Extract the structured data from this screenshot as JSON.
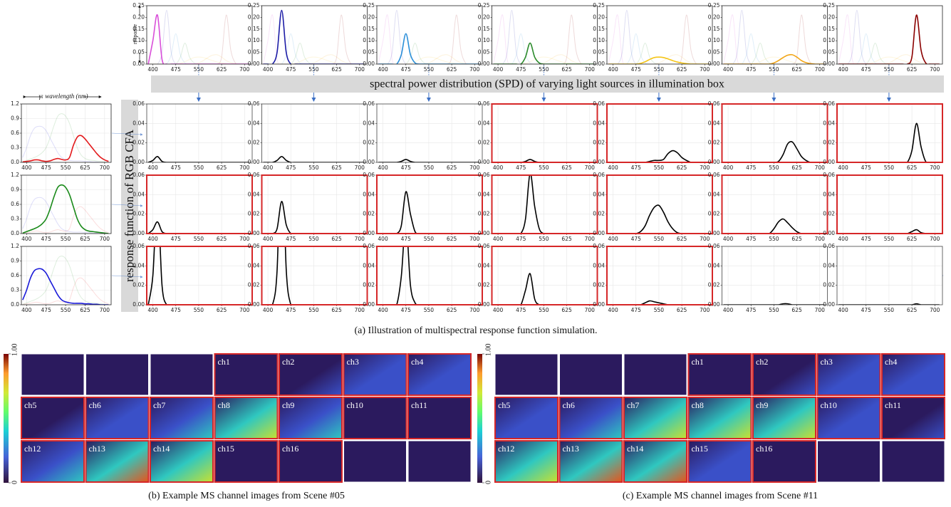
{
  "spd": {
    "ylabel": "response",
    "x": [
      385,
      400,
      415,
      430,
      445,
      460,
      475,
      490,
      505,
      520,
      535,
      550,
      565,
      580,
      595,
      610,
      625,
      640,
      655,
      670,
      685,
      700,
      715
    ],
    "xlim": [
      380,
      725
    ],
    "ylim": [
      0,
      0.25
    ],
    "xticks": [
      400,
      475,
      550,
      625,
      700
    ],
    "yticks": [
      {
        "value": 0,
        "label": "0.00"
      },
      0.05,
      {
        "value": 0.1,
        "label": "0.10"
      },
      0.15,
      {
        "value": 0.2,
        "label": "0.20"
      },
      0.25
    ],
    "series": [
      {
        "color": "#d94fd9",
        "values": [
          0,
          0.1,
          0.21,
          0.02,
          0,
          0,
          0,
          0,
          0,
          0,
          0,
          0,
          0,
          0,
          0,
          0,
          0,
          0,
          0,
          0,
          0,
          0,
          0
        ]
      },
      {
        "color": "#1c1ca6",
        "values": [
          0,
          0,
          0,
          0.05,
          0.23,
          0.05,
          0,
          0,
          0,
          0,
          0,
          0,
          0,
          0,
          0,
          0,
          0,
          0,
          0,
          0,
          0,
          0,
          0
        ]
      },
      {
        "color": "#2b8fd9",
        "values": [
          0,
          0,
          0,
          0,
          0,
          0.04,
          0.13,
          0.04,
          0.005,
          0,
          0,
          0,
          0,
          0,
          0,
          0,
          0,
          0,
          0,
          0,
          0,
          0,
          0
        ]
      },
      {
        "color": "#2a8a2a",
        "values": [
          0,
          0,
          0,
          0,
          0,
          0,
          0,
          0.03,
          0.09,
          0.03,
          0.005,
          0,
          0,
          0,
          0,
          0,
          0,
          0,
          0,
          0,
          0,
          0,
          0
        ]
      },
      {
        "color": "#f5c518",
        "values": [
          0,
          0,
          0,
          0,
          0,
          0,
          0,
          0.003,
          0.01,
          0.02,
          0.028,
          0.03,
          0.028,
          0.022,
          0.015,
          0.009,
          0.005,
          0.002,
          0,
          0,
          0,
          0,
          0
        ]
      },
      {
        "color": "#f2a516",
        "values": [
          0,
          0,
          0,
          0,
          0,
          0,
          0,
          0,
          0,
          0,
          0,
          0.005,
          0.015,
          0.028,
          0.038,
          0.04,
          0.03,
          0.015,
          0.006,
          0.002,
          0,
          0,
          0
        ]
      },
      {
        "color": "#8b0000",
        "values": [
          0,
          0,
          0,
          0,
          0,
          0,
          0,
          0,
          0,
          0,
          0,
          0,
          0,
          0,
          0,
          0,
          0.03,
          0.21,
          0.06,
          0.005,
          0,
          0,
          0
        ]
      }
    ]
  },
  "cfa": {
    "title": "γ: wavelength (nm)",
    "x": [
      385,
      400,
      415,
      430,
      445,
      460,
      475,
      490,
      505,
      520,
      535,
      550,
      565,
      580,
      595,
      610,
      625,
      640,
      655,
      670,
      685,
      700,
      715
    ],
    "xlim": [
      380,
      725
    ],
    "ylim": [
      0,
      1.2
    ],
    "xticks": [
      400,
      475,
      550,
      625,
      700
    ],
    "yticks": [
      {
        "value": 0,
        "label": "0.0"
      },
      0.3,
      0.6,
      0.9,
      1.2
    ],
    "series": [
      {
        "color": "#e31a1c",
        "values": [
          0.01,
          0.02,
          0.03,
          0.05,
          0.05,
          0.03,
          0.02,
          0.03,
          0.06,
          0.08,
          0.06,
          0.05,
          0.1,
          0.35,
          0.52,
          0.55,
          0.48,
          0.38,
          0.28,
          0.18,
          0.1,
          0.05,
          0.02
        ]
      },
      {
        "color": "#1a8a1a",
        "values": [
          0.01,
          0.04,
          0.07,
          0.1,
          0.14,
          0.2,
          0.3,
          0.5,
          0.75,
          0.95,
          1.0,
          0.95,
          0.8,
          0.55,
          0.3,
          0.15,
          0.08,
          0.05,
          0.04,
          0.03,
          0.02,
          0.01,
          0
        ]
      },
      {
        "color": "#1a1ad9",
        "values": [
          0.1,
          0.3,
          0.55,
          0.7,
          0.74,
          0.73,
          0.65,
          0.5,
          0.35,
          0.2,
          0.1,
          0.06,
          0.04,
          0.03,
          0.03,
          0.03,
          0.02,
          0.02,
          0.01,
          0.01,
          0,
          0,
          0
        ]
      }
    ]
  },
  "response": {
    "x": [
      385,
      400,
      415,
      430,
      445,
      460,
      475,
      490,
      505,
      520,
      535,
      550,
      565,
      580,
      595,
      610,
      625,
      640,
      655,
      670,
      685,
      700,
      715
    ],
    "xlim": [
      380,
      725
    ],
    "ylim": [
      0,
      0.06
    ],
    "xticks": [
      400,
      475,
      550,
      625,
      700
    ],
    "yticks": [
      {
        "value": 0,
        "label": "0.00"
      },
      0.02,
      0.04,
      0.06
    ],
    "highlight_color": "#d62728",
    "highlighted": [
      [
        false,
        false,
        false,
        true,
        true,
        true,
        true
      ],
      [
        true,
        true,
        true,
        true,
        true,
        true,
        true
      ],
      [
        true,
        true,
        true,
        true,
        true,
        false,
        false
      ]
    ],
    "values": [
      [
        [
          0,
          0.002,
          0.006,
          0.001,
          0,
          0,
          0,
          0,
          0,
          0,
          0,
          0,
          0,
          0,
          0,
          0,
          0,
          0,
          0,
          0,
          0,
          0,
          0
        ],
        [
          0,
          0,
          0,
          0.002,
          0.006,
          0.002,
          0,
          0,
          0,
          0,
          0,
          0,
          0,
          0,
          0,
          0,
          0,
          0,
          0,
          0,
          0,
          0,
          0
        ],
        [
          0,
          0,
          0,
          0,
          0,
          0.001,
          0.003,
          0.001,
          0,
          0,
          0,
          0,
          0,
          0,
          0,
          0,
          0,
          0,
          0,
          0,
          0,
          0,
          0
        ],
        [
          0,
          0,
          0,
          0,
          0,
          0,
          0,
          0.001,
          0.003,
          0.001,
          0,
          0,
          0,
          0,
          0,
          0,
          0,
          0,
          0,
          0,
          0,
          0,
          0
        ],
        [
          0,
          0,
          0,
          0,
          0,
          0,
          0,
          0,
          0,
          0.001,
          0.002,
          0.002,
          0.003,
          0.009,
          0.012,
          0.01,
          0.005,
          0.002,
          0,
          0,
          0,
          0,
          0
        ],
        [
          0,
          0,
          0,
          0,
          0,
          0,
          0,
          0,
          0,
          0,
          0,
          0,
          0.001,
          0.008,
          0.019,
          0.021,
          0.014,
          0.006,
          0.002,
          0,
          0,
          0,
          0
        ],
        [
          0,
          0,
          0,
          0,
          0,
          0,
          0,
          0,
          0,
          0,
          0,
          0,
          0,
          0,
          0,
          0,
          0.012,
          0.04,
          0.016,
          0.001,
          0,
          0,
          0
        ]
      ],
      [
        [
          0,
          0.004,
          0.012,
          0.002,
          0,
          0,
          0,
          0,
          0,
          0,
          0,
          0,
          0,
          0,
          0,
          0,
          0,
          0,
          0,
          0,
          0,
          0,
          0
        ],
        [
          0,
          0,
          0,
          0.005,
          0.033,
          0.009,
          0,
          0,
          0,
          0,
          0,
          0,
          0,
          0,
          0,
          0,
          0,
          0,
          0,
          0,
          0,
          0,
          0
        ],
        [
          0,
          0,
          0,
          0,
          0,
          0.008,
          0.043,
          0.02,
          0.002,
          0,
          0,
          0,
          0,
          0,
          0,
          0,
          0,
          0,
          0,
          0,
          0,
          0,
          0
        ],
        [
          0,
          0,
          0,
          0,
          0,
          0,
          0,
          0.015,
          0.062,
          0.028,
          0.005,
          0,
          0,
          0,
          0,
          0,
          0,
          0,
          0,
          0,
          0,
          0,
          0
        ],
        [
          0,
          0,
          0,
          0,
          0,
          0,
          0,
          0.002,
          0.008,
          0.019,
          0.027,
          0.029,
          0.022,
          0.012,
          0.005,
          0.001,
          0,
          0,
          0,
          0,
          0,
          0,
          0
        ],
        [
          0,
          0,
          0,
          0,
          0,
          0,
          0,
          0,
          0,
          0,
          0,
          0.005,
          0.012,
          0.015,
          0.011,
          0.006,
          0.002,
          0,
          0,
          0,
          0,
          0,
          0
        ],
        [
          0,
          0,
          0,
          0,
          0,
          0,
          0,
          0,
          0,
          0,
          0,
          0,
          0,
          0,
          0,
          0,
          0.002,
          0.004,
          0.001,
          0,
          0,
          0,
          0
        ]
      ],
      [
        [
          0,
          0.03,
          0.11,
          0.02,
          0,
          0,
          0,
          0,
          0,
          0,
          0,
          0,
          0,
          0,
          0,
          0,
          0,
          0,
          0,
          0,
          0,
          0,
          0
        ],
        [
          0,
          0,
          0,
          0.035,
          0.17,
          0.036,
          0,
          0,
          0,
          0,
          0,
          0,
          0,
          0,
          0,
          0,
          0,
          0,
          0,
          0,
          0,
          0,
          0
        ],
        [
          0,
          0,
          0,
          0,
          0,
          0.029,
          0.085,
          0.02,
          0.002,
          0,
          0,
          0,
          0,
          0,
          0,
          0,
          0,
          0,
          0,
          0,
          0,
          0,
          0
        ],
        [
          0,
          0,
          0,
          0,
          0,
          0,
          0,
          0.015,
          0.032,
          0.006,
          0,
          0,
          0,
          0,
          0,
          0,
          0,
          0,
          0,
          0,
          0,
          0,
          0
        ],
        [
          0,
          0,
          0,
          0,
          0,
          0,
          0,
          0,
          0.002,
          0.004,
          0.003,
          0.002,
          0.001,
          0,
          0,
          0,
          0,
          0,
          0,
          0,
          0,
          0,
          0
        ],
        [
          0,
          0,
          0,
          0,
          0,
          0,
          0,
          0,
          0,
          0,
          0,
          0,
          0,
          0.001,
          0.001,
          0,
          0,
          0,
          0,
          0,
          0,
          0,
          0
        ],
        [
          0,
          0,
          0,
          0,
          0,
          0,
          0,
          0,
          0,
          0,
          0,
          0,
          0,
          0,
          0,
          0,
          0,
          0.001,
          0,
          0,
          0,
          0,
          0
        ]
      ]
    ]
  },
  "banners": {
    "spd": "spectral power distribution (SPD) of varying light sources in illumination box",
    "cfa": "response function of RGB CFA"
  },
  "captions": {
    "a": "(a) Illustration of multispectral response function simulation."
  },
  "scenes": [
    {
      "caption": "(b) Example MS channel images from Scene #05",
      "colorbar_ticks": [
        0,
        {
          "value": 1,
          "label": "1.00"
        }
      ],
      "tiles": [
        null,
        null,
        null,
        "ch1",
        "ch2",
        "ch3",
        "ch4",
        "ch5",
        "ch6",
        "ch7",
        "ch8",
        "ch9",
        "ch10",
        "ch11",
        "ch12",
        "ch13",
        "ch14",
        "ch15",
        "ch16",
        null,
        null
      ]
    },
    {
      "caption": "(c) Example MS channel images from Scene #11",
      "colorbar_ticks": [
        0,
        {
          "value": 1,
          "label": "1.00"
        }
      ],
      "tiles": [
        null,
        null,
        null,
        "ch1",
        "ch2",
        "ch3",
        "ch4",
        "ch5",
        "ch6",
        "ch7",
        "ch8",
        "ch9",
        "ch10",
        "ch11",
        "ch12",
        "ch13",
        "ch14",
        "ch15",
        "ch16",
        null,
        null
      ]
    }
  ]
}
